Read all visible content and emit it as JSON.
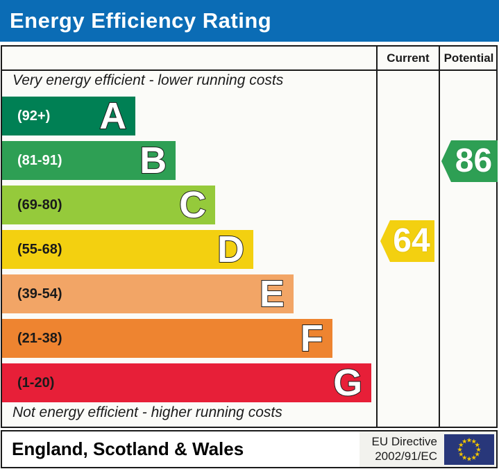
{
  "header": {
    "title": "Energy Efficiency Rating",
    "background_color": "#0b6cb5"
  },
  "table": {
    "current_label": "Current",
    "potential_label": "Potential",
    "top_note": "Very energy efficient - lower running costs",
    "bottom_note": "Not energy efficient - higher running costs"
  },
  "chart_data": {
    "type": "bar",
    "title": "Energy Efficiency Rating",
    "bands": [
      {
        "letter": "A",
        "range": "(92+)",
        "score_min": 92,
        "score_max": 100,
        "color": "#008054",
        "text_color": "#ffffff",
        "width_pct": 35.8
      },
      {
        "letter": "B",
        "range": "(81-91)",
        "score_min": 81,
        "score_max": 91,
        "color": "#2e9f54",
        "text_color": "#ffffff",
        "width_pct": 46.6
      },
      {
        "letter": "C",
        "range": "(69-80)",
        "score_min": 69,
        "score_max": 80,
        "color": "#95ca3b",
        "text_color": "#1a1a1a",
        "width_pct": 57.2
      },
      {
        "letter": "D",
        "range": "(55-68)",
        "score_min": 55,
        "score_max": 68,
        "color": "#f3d010",
        "text_color": "#1a1a1a",
        "width_pct": 67.4
      },
      {
        "letter": "E",
        "range": "(39-54)",
        "score_min": 39,
        "score_max": 54,
        "color": "#f2a566",
        "text_color": "#1a1a1a",
        "width_pct": 78.2
      },
      {
        "letter": "F",
        "range": "(21-38)",
        "score_min": 21,
        "score_max": 38,
        "color": "#ee8430",
        "text_color": "#1a1a1a",
        "width_pct": 88.6
      },
      {
        "letter": "G",
        "range": "(1-20)",
        "score_min": 1,
        "score_max": 20,
        "color": "#e71f38",
        "text_color": "#1a1a1a",
        "width_pct": 99.1
      }
    ],
    "current": {
      "value": 64,
      "band": "D",
      "color": "#f3d010"
    },
    "potential": {
      "value": 86,
      "band": "B",
      "color": "#2e9f54"
    }
  },
  "footer": {
    "region_label": "England, Scotland & Wales",
    "directive_line1": "EU Directive",
    "directive_line2": "2002/91/EC",
    "flag_colors": {
      "field": "#28377a",
      "stars": "#f2c500"
    }
  }
}
